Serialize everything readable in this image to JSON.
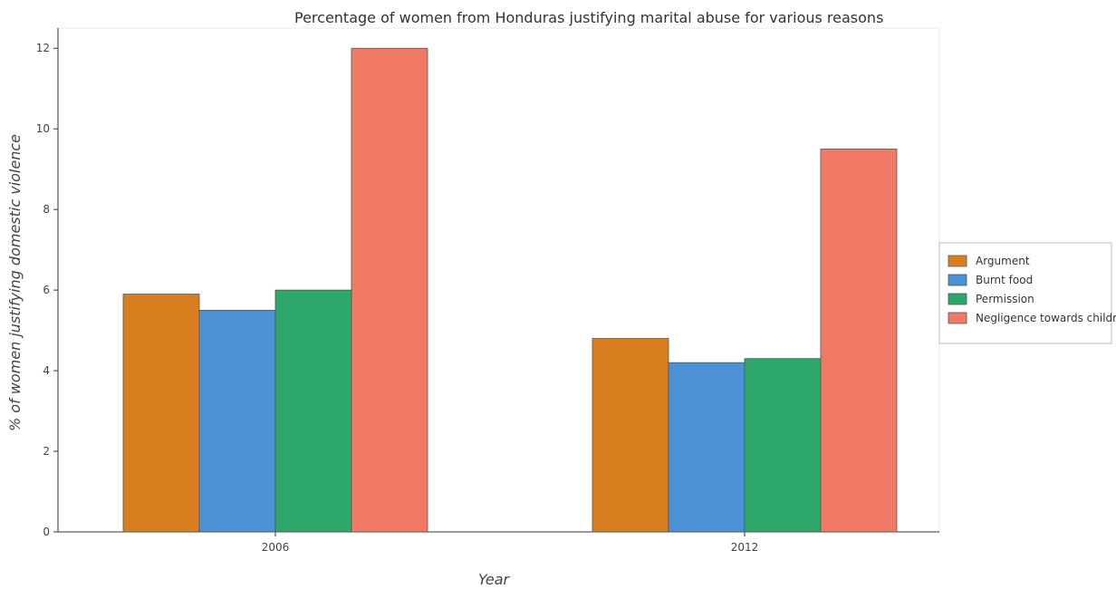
{
  "chart_data": {
    "type": "bar",
    "title": "Percentage of women from Honduras justifying marital abuse for various reasons",
    "xlabel": "Year",
    "ylabel": "% of women justifying domestic violence",
    "categories": [
      "2006",
      "2012"
    ],
    "ylim": [
      0,
      12.5
    ],
    "yticks": [
      0,
      2,
      4,
      6,
      8,
      10,
      12
    ],
    "grid": false,
    "legend_position": "right",
    "series": [
      {
        "name": "Argument",
        "values": [
          5.9,
          4.8
        ],
        "color": "#d97e1f"
      },
      {
        "name": "Burnt food",
        "values": [
          5.5,
          4.2
        ],
        "color": "#4b91d6"
      },
      {
        "name": "Permission",
        "values": [
          6.0,
          4.3
        ],
        "color": "#2da86a"
      },
      {
        "name": "Negligence towards children",
        "values": [
          12.0,
          9.5
        ],
        "color": "#f07a66"
      }
    ]
  }
}
